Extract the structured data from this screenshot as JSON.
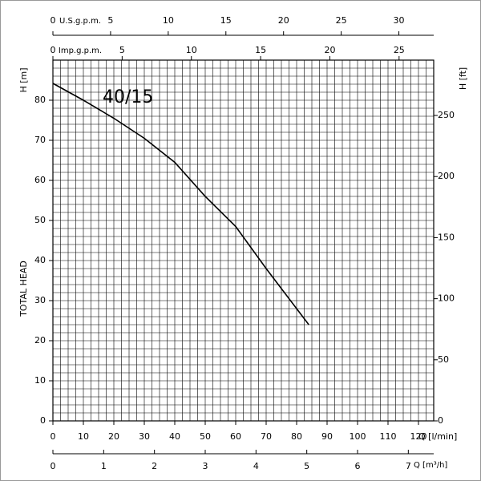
{
  "chart_data": {
    "type": "line",
    "x": [
      0,
      10,
      20,
      30,
      40,
      50,
      60,
      70,
      80,
      84
    ],
    "series": [
      {
        "name": "40/15",
        "color": "#000000",
        "values": [
          84.2,
          80,
          75.5,
          70.5,
          64.5,
          56,
          48.5,
          38,
          28,
          24
        ]
      }
    ],
    "xlabel": "Q [l/min]",
    "xlim": [
      0,
      125
    ],
    "xticks": [
      0,
      10,
      20,
      30,
      40,
      50,
      60,
      70,
      80,
      90,
      100,
      110,
      120
    ],
    "ylabel": "H [m]",
    "ylim": [
      0,
      90
    ],
    "yticks": [
      0,
      10,
      20,
      30,
      40,
      50,
      60,
      70,
      80
    ],
    "y2label": "H [ft]",
    "y2lim": [
      0,
      295.3
    ],
    "y2ticks": [
      0,
      50,
      100,
      150,
      200,
      250
    ],
    "side_label": "TOTAL HEAD",
    "grid": true,
    "x_grid_step": 2.5,
    "y_grid_step": 2,
    "extra_x_axes": [
      {
        "label": "U.S.g.p.m.",
        "xlim": [
          0,
          33.02
        ],
        "xticks": [
          0,
          5,
          10,
          15,
          20,
          25,
          30
        ]
      },
      {
        "label": "Imp.g.p.m.",
        "xlim": [
          0,
          27.5
        ],
        "xticks": [
          0,
          5,
          10,
          15,
          20,
          25
        ]
      },
      {
        "label": "Q [m³/h]",
        "xlim": [
          0,
          7.5
        ],
        "xticks": [
          0,
          1,
          2,
          3,
          4,
          5,
          6,
          7
        ]
      }
    ]
  }
}
